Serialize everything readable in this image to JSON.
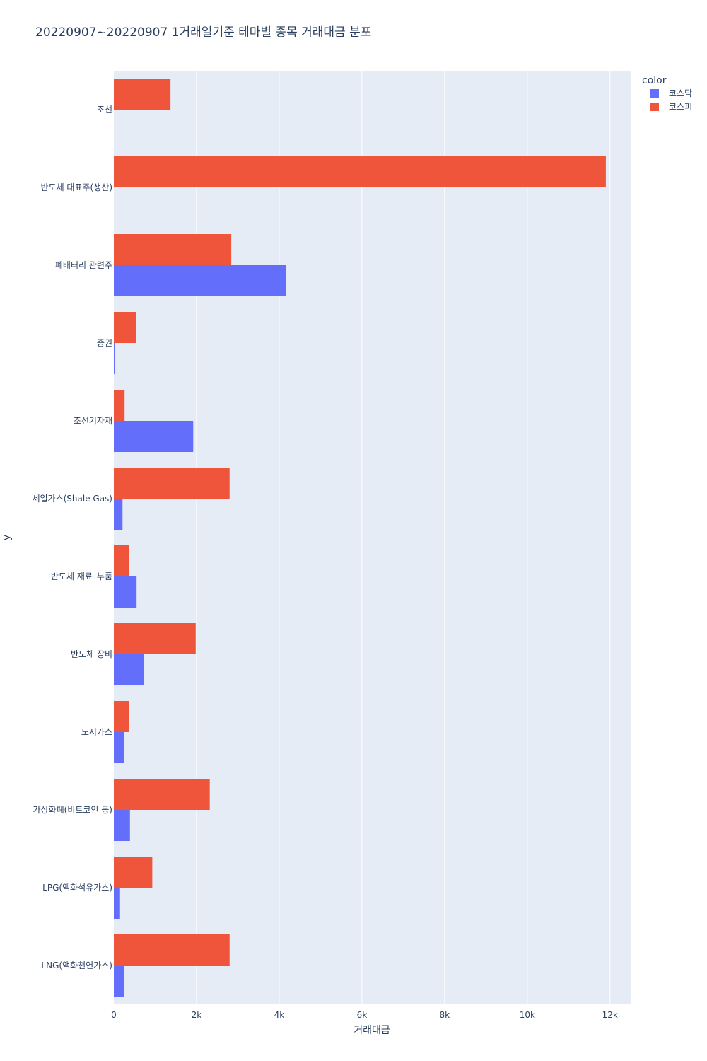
{
  "chart_data": {
    "type": "bar",
    "orientation": "horizontal",
    "title": "20220907~20220907 1거래일기준 테마별 종목 거래대금 분포",
    "xlabel": "거래대금",
    "ylabel": "y",
    "xlim": [
      0,
      12500
    ],
    "x_ticks": [
      0,
      2000,
      4000,
      6000,
      8000,
      10000,
      12000
    ],
    "x_tick_labels": [
      "0",
      "2k",
      "4k",
      "6k",
      "8k",
      "10k",
      "12k"
    ],
    "categories": [
      "조선",
      "반도체 대표주(생산)",
      "폐배터리 관련주",
      "증권",
      "조선기자재",
      "세일가스(Shale Gas)",
      "반도체 재료_부품",
      "반도체 장비",
      "도시가스",
      "가상화폐(비트코인 등)",
      "LPG(액화석유가스)",
      "LNG(액화천연가스)"
    ],
    "legend_title": "color",
    "legend_position": "top-right",
    "grid": true,
    "series": [
      {
        "name": "코스닥",
        "color": "#636efa",
        "values": [
          0,
          0,
          4170,
          15,
          1920,
          210,
          550,
          720,
          250,
          390,
          150,
          250
        ]
      },
      {
        "name": "코스피",
        "color": "#ef553b",
        "values": [
          1370,
          11900,
          2840,
          530,
          260,
          2800,
          370,
          1980,
          370,
          2320,
          930,
          2800
        ]
      }
    ]
  }
}
